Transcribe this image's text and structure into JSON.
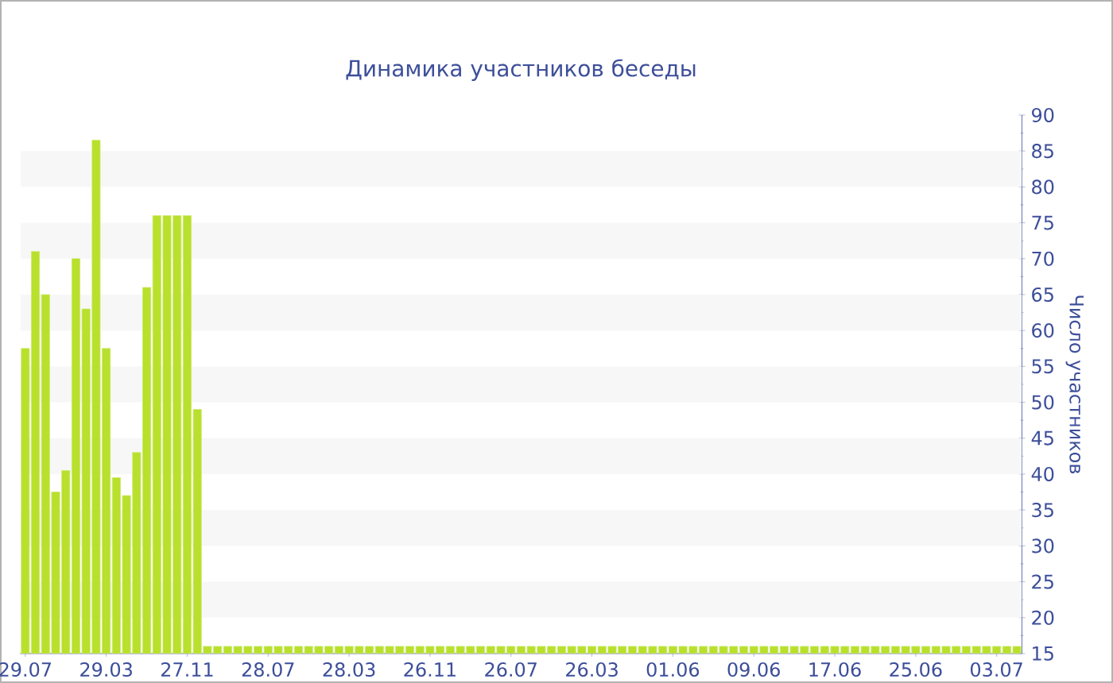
{
  "chart_data": {
    "type": "bar",
    "title": "Динамика участников беседы",
    "ylabel": "Число участников",
    "categories": [
      "29.07",
      null,
      null,
      null,
      null,
      null,
      null,
      null,
      "29.03",
      null,
      null,
      null,
      null,
      null,
      null,
      null,
      "27.11",
      null,
      null,
      null,
      null,
      null,
      null,
      null,
      "28.07",
      null,
      null,
      null,
      null,
      null,
      null,
      null,
      "28.03",
      null,
      null,
      null,
      null,
      null,
      null,
      null,
      "26.11",
      null,
      null,
      null,
      null,
      null,
      null,
      null,
      "26.07",
      null,
      null,
      null,
      null,
      null,
      null,
      null,
      "26.03",
      null,
      null,
      null,
      null,
      null,
      null,
      null,
      "01.06",
      null,
      null,
      null,
      null,
      null,
      null,
      null,
      "09.06",
      null,
      null,
      null,
      null,
      null,
      null,
      null,
      "17.06",
      null,
      null,
      null,
      null,
      null,
      null,
      null,
      "25.06",
      null,
      null,
      null,
      null,
      null,
      null,
      null,
      "03.07",
      null,
      null
    ],
    "values": [
      57.5,
      71,
      65,
      37.5,
      40.5,
      70,
      63,
      86.5,
      57.5,
      39.5,
      37,
      43,
      66,
      76,
      76,
      76,
      76,
      49,
      16,
      16,
      16,
      16,
      16,
      16,
      16,
      16,
      16,
      16,
      16,
      16,
      16,
      16,
      16,
      16,
      16,
      16,
      16,
      16,
      16,
      16,
      16,
      16,
      16,
      16,
      16,
      16,
      16,
      16,
      16,
      16,
      16,
      16,
      16,
      16,
      16,
      16,
      16,
      16,
      16,
      16,
      16,
      16,
      16,
      16,
      16,
      16,
      16,
      16,
      16,
      16,
      16,
      16,
      16,
      16,
      16,
      16,
      16,
      16,
      16,
      16,
      16,
      16,
      16,
      16,
      16,
      16,
      16,
      16,
      16,
      16,
      16,
      16,
      16,
      16,
      16,
      16,
      16,
      16,
      16
    ],
    "color": "#b8e02c",
    "ylim": [
      15,
      90
    ],
    "yticks": [
      15,
      20,
      25,
      30,
      35,
      40,
      45,
      50,
      55,
      60,
      65,
      70,
      75,
      80,
      85,
      90
    ]
  }
}
